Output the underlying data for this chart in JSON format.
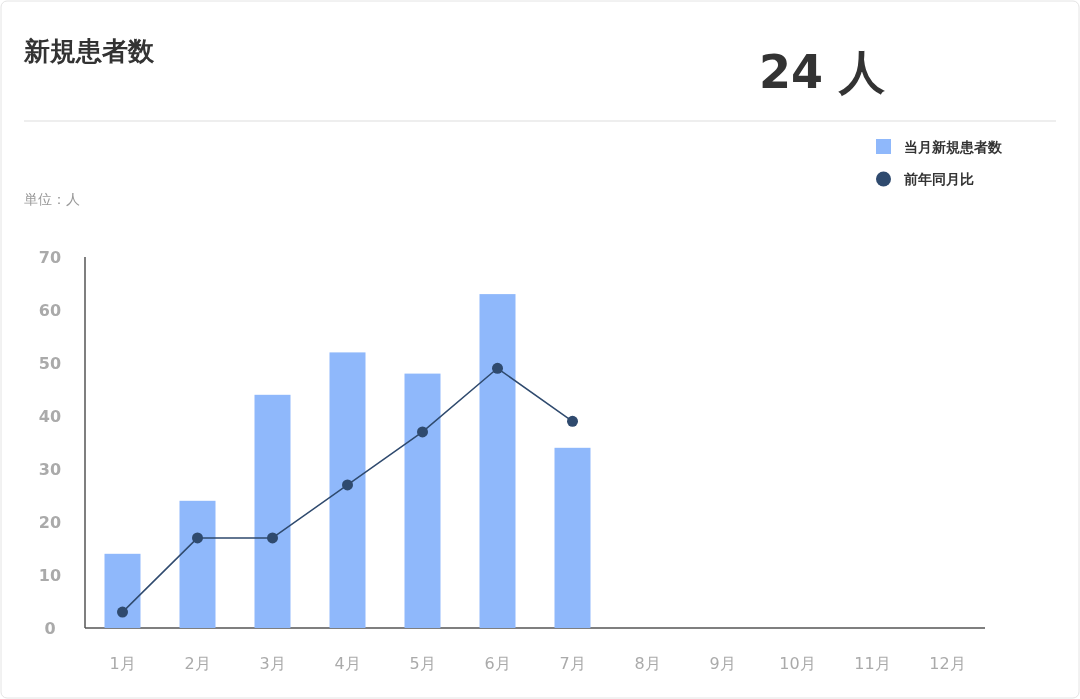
{
  "chart_data": {
    "type": "bar",
    "title": "新規患者数",
    "annotations": [
      "24 人",
      "単位：人"
    ],
    "categories": [
      "1月",
      "2月",
      "3月",
      "4月",
      "5月",
      "6月",
      "7月",
      "8月",
      "9月",
      "10月",
      "11月",
      "12月"
    ],
    "series": [
      {
        "name": "当月新規患者数",
        "color": "#8fb8fb",
        "values": [
          14,
          24,
          44,
          52,
          48,
          63,
          34,
          null,
          null,
          null,
          null,
          null
        ]
      },
      {
        "name": "前年同月比",
        "type": "line",
        "marker": "circle",
        "color": "#2f4a6e",
        "values": [
          3,
          17,
          17,
          27,
          37,
          49,
          39,
          null,
          null,
          null,
          null,
          null
        ]
      }
    ],
    "ylim": [
      0,
      70
    ],
    "yticks": [
      0,
      10,
      20,
      30,
      40,
      50,
      60,
      70
    ],
    "legend": "top right"
  }
}
